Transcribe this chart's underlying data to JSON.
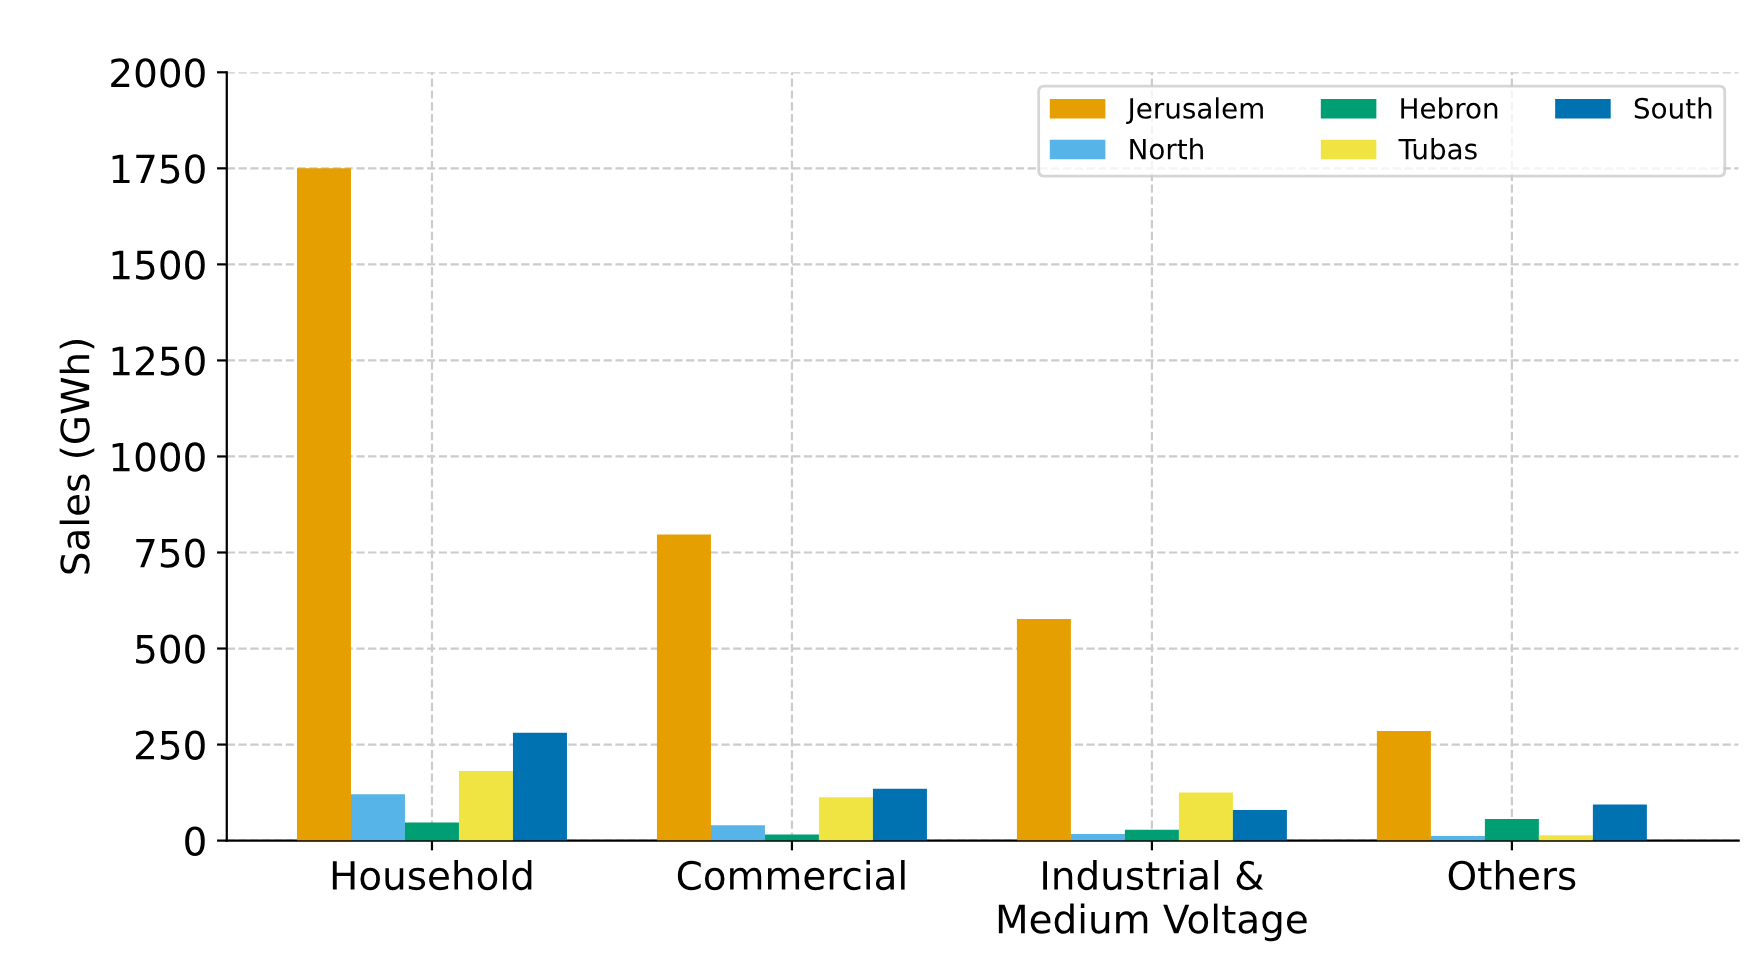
{
  "chart_data": {
    "type": "bar",
    "ylabel": "Sales (GWh)",
    "categories": [
      "Household",
      "Commercial",
      "Industrial &\nMedium Voltage",
      "Others"
    ],
    "series": [
      {
        "name": "Jerusalem",
        "color": "#e69f00",
        "values": [
          1750,
          797,
          577,
          285
        ]
      },
      {
        "name": "North",
        "color": "#56b4e9",
        "values": [
          121,
          40,
          17,
          12
        ]
      },
      {
        "name": "Hebron",
        "color": "#009e73",
        "values": [
          47,
          16,
          28,
          56
        ]
      },
      {
        "name": "Tubas",
        "color": "#f0e442",
        "values": [
          181,
          113,
          125,
          14
        ]
      },
      {
        "name": "South",
        "color": "#0072b2",
        "values": [
          281,
          135,
          80,
          94
        ]
      }
    ],
    "ylim": [
      0,
      2000
    ],
    "yticks": [
      0,
      250,
      500,
      750,
      1000,
      1250,
      1500,
      1750,
      2000
    ],
    "grid": true,
    "legend": "top right"
  }
}
